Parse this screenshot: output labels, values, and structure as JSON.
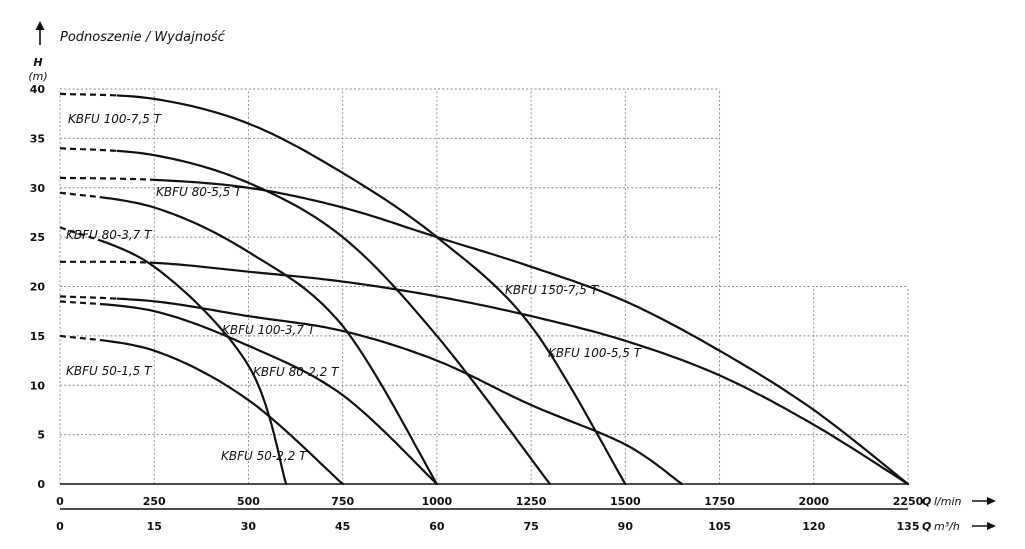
{
  "title": "Podnoszenie / Wydajność",
  "y_axis": {
    "name": "H",
    "unit": "(m)"
  },
  "x_axis_primary": {
    "name": "Q",
    "unit": "l/min"
  },
  "x_axis_secondary": {
    "name": "Q",
    "unit": "m³/h"
  },
  "chart_data": {
    "type": "line",
    "title": "Podnoszenie / Wydajność",
    "xlabel": "Q l/min",
    "x2label": "Q m³/h",
    "ylabel": "H (m)",
    "xlim": [
      0,
      2250
    ],
    "ylim": [
      0,
      40
    ],
    "x_ticks": [
      0,
      250,
      500,
      750,
      1000,
      1250,
      1500,
      1750,
      2000,
      2250
    ],
    "x2_ticks": [
      0,
      15,
      30,
      45,
      60,
      75,
      90,
      105,
      120,
      135
    ],
    "y_ticks": [
      0,
      5,
      10,
      15,
      20,
      25,
      30,
      35,
      40
    ],
    "grid": true,
    "series": [
      {
        "name": "KBFU 100-7,5 T",
        "dashed_to": 150,
        "points": [
          [
            0,
            39.5
          ],
          [
            250,
            39.0
          ],
          [
            500,
            36.5
          ],
          [
            750,
            31.5
          ],
          [
            1000,
            25.0
          ],
          [
            1250,
            16.0
          ],
          [
            1500,
            0.0
          ]
        ]
      },
      {
        "name": "KBFU 80-5,5 T",
        "dashed_to": 150,
        "points": [
          [
            0,
            34.0
          ],
          [
            250,
            33.3
          ],
          [
            500,
            30.5
          ],
          [
            750,
            25.0
          ],
          [
            1000,
            15.0
          ],
          [
            1300,
            0.0
          ]
        ]
      },
      {
        "name": "KBFU 150-7,5 T",
        "dashed_to": 250,
        "points": [
          [
            0,
            31.0
          ],
          [
            250,
            30.8
          ],
          [
            500,
            30.0
          ],
          [
            750,
            28.0
          ],
          [
            1000,
            25.0
          ],
          [
            1250,
            22.0
          ],
          [
            1500,
            18.5
          ],
          [
            1750,
            13.5
          ],
          [
            2000,
            7.5
          ],
          [
            2250,
            0.0
          ]
        ]
      },
      {
        "name": "KBFU 80-3,7 T",
        "dashed_to": 100,
        "points": [
          [
            0,
            29.5
          ],
          [
            250,
            28.0
          ],
          [
            500,
            23.5
          ],
          [
            750,
            16.0
          ],
          [
            1000,
            0.0
          ]
        ]
      },
      {
        "name": "KBFU 50-2,2 T",
        "dashed_to": 100,
        "points": [
          [
            0,
            26.0
          ],
          [
            250,
            22.0
          ],
          [
            500,
            12.0
          ],
          [
            600,
            0.0
          ]
        ]
      },
      {
        "name": "KBFU 100-5,5 T",
        "dashed_to": 250,
        "points": [
          [
            0,
            22.5
          ],
          [
            250,
            22.4
          ],
          [
            500,
            21.5
          ],
          [
            750,
            20.5
          ],
          [
            1000,
            19.0
          ],
          [
            1250,
            17.0
          ],
          [
            1500,
            14.5
          ],
          [
            1750,
            11.0
          ],
          [
            2000,
            6.0
          ],
          [
            2250,
            0.0
          ]
        ]
      },
      {
        "name": "KBFU 100-3,7 T",
        "dashed_to": 150,
        "points": [
          [
            0,
            19.0
          ],
          [
            250,
            18.5
          ],
          [
            500,
            17.0
          ],
          [
            750,
            15.5
          ],
          [
            1000,
            12.5
          ],
          [
            1250,
            8.0
          ],
          [
            1500,
            4.0
          ],
          [
            1650,
            0.0
          ]
        ]
      },
      {
        "name": "KBFU 80-2,2 T",
        "dashed_to": 100,
        "points": [
          [
            0,
            18.5
          ],
          [
            250,
            17.5
          ],
          [
            500,
            14.0
          ],
          [
            750,
            9.0
          ],
          [
            1000,
            0.0
          ]
        ]
      },
      {
        "name": "KBFU 50-1,5 T",
        "dashed_to": 100,
        "points": [
          [
            0,
            15.0
          ],
          [
            250,
            13.5
          ],
          [
            500,
            8.5
          ],
          [
            750,
            0.0
          ]
        ]
      }
    ]
  }
}
